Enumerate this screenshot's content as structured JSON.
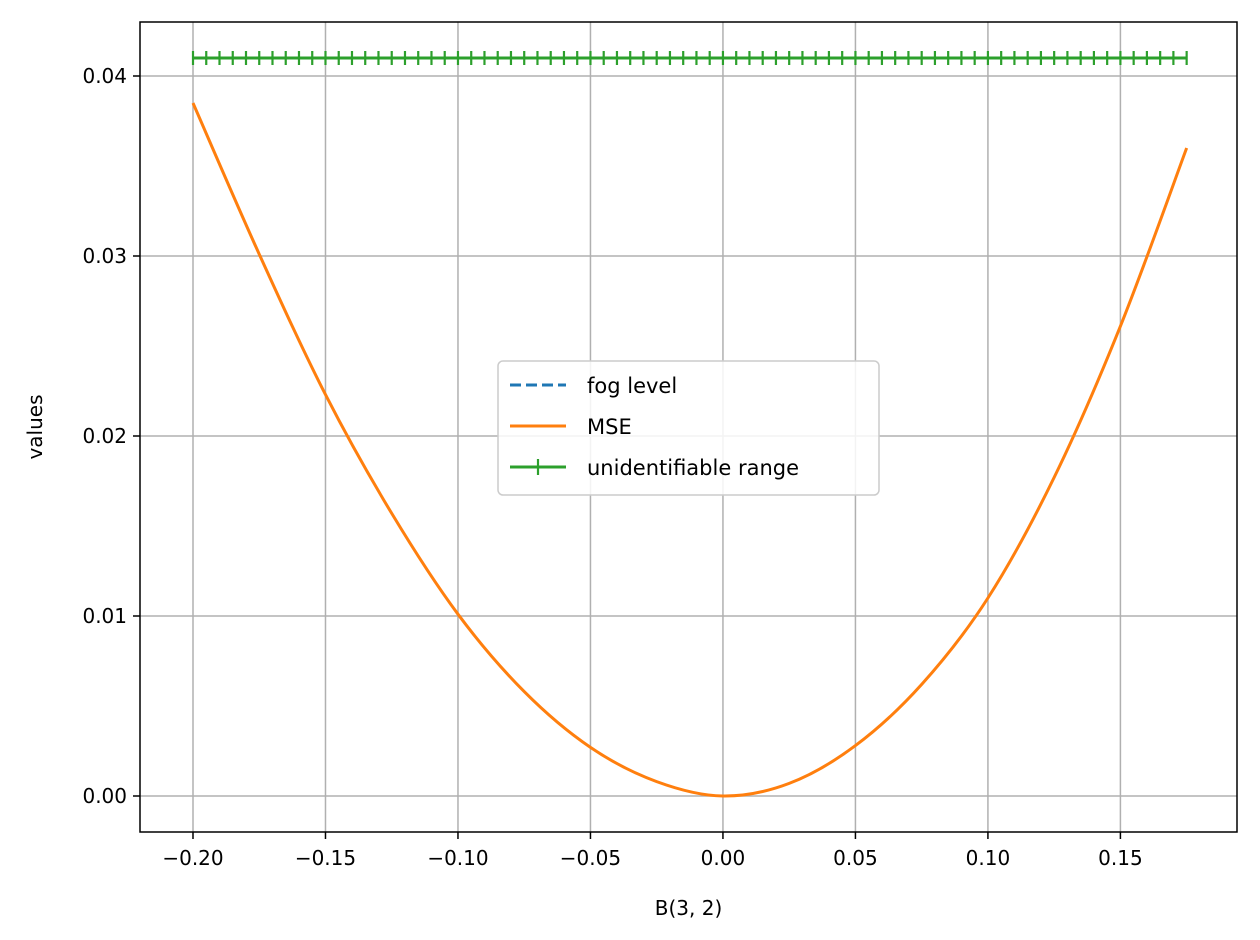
{
  "chart_data": {
    "type": "line",
    "title": "",
    "xlabel": "B(3, 2)",
    "ylabel": "values",
    "xlim": [
      -0.22,
      0.194
    ],
    "ylim": [
      -0.002,
      0.043
    ],
    "x_ticks": [
      -0.2,
      -0.15,
      -0.1,
      -0.05,
      0.0,
      0.05,
      0.1,
      0.15
    ],
    "x_tick_labels": [
      "−0.20",
      "−0.15",
      "−0.10",
      "−0.05",
      "0.00",
      "0.05",
      "0.10",
      "0.15"
    ],
    "y_ticks": [
      0.0,
      0.01,
      0.02,
      0.03,
      0.04
    ],
    "y_tick_labels": [
      "0.00",
      "0.01",
      "0.02",
      "0.03",
      "0.04"
    ],
    "grid": true,
    "legend_position": "center",
    "series": [
      {
        "name": "fog level",
        "style": "dashed",
        "color": "#1f77b4",
        "x_range": [
          -0.2,
          0.175
        ],
        "y": 0.041
      },
      {
        "name": "MSE",
        "style": "solid",
        "color": "#ff7f0e",
        "x": [
          -0.2,
          -0.175,
          -0.15,
          -0.125,
          -0.1,
          -0.075,
          -0.05,
          -0.025,
          0.0,
          0.025,
          0.05,
          0.075,
          0.1,
          0.125,
          0.15,
          0.175
        ],
        "y": [
          0.0385,
          0.0301,
          0.0223,
          0.0157,
          0.0101,
          0.0058,
          0.0027,
          0.0008,
          0.0,
          0.0007,
          0.0028,
          0.0062,
          0.011,
          0.0177,
          0.0261,
          0.036
        ]
      },
      {
        "name": "unidentifiable range",
        "style": "solid+plus-markers",
        "color": "#2ca02c",
        "x_range": [
          -0.2,
          0.175
        ],
        "y": 0.041,
        "marker_count": 76
      }
    ]
  }
}
